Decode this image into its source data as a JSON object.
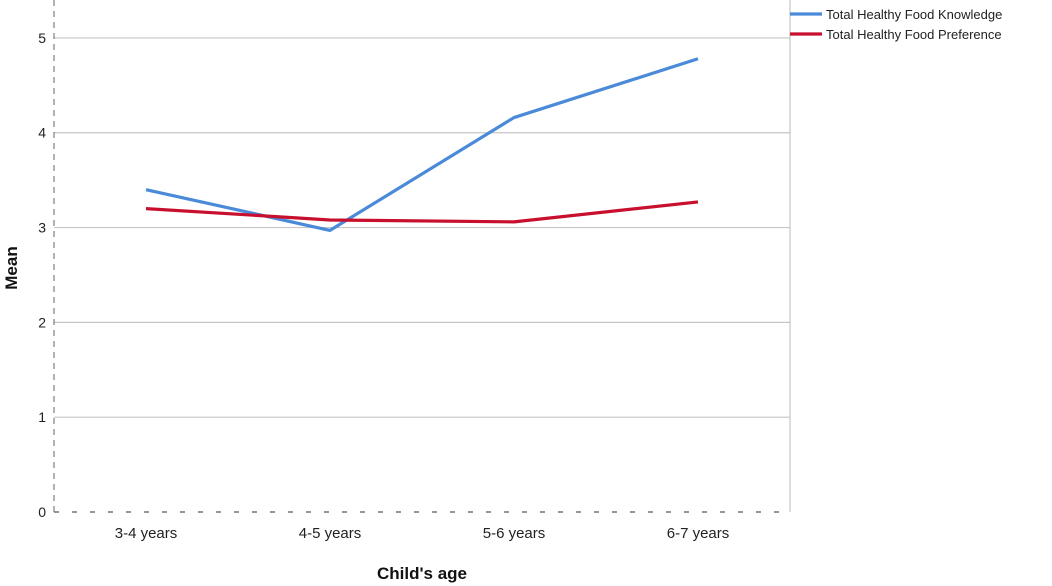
{
  "chart_data": {
    "type": "line",
    "xlabel": "Child's age",
    "ylabel": "Mean",
    "categories": [
      "3-4 years",
      "4-5 years",
      "5-6 years",
      "6-7 years"
    ],
    "ylim": [
      0,
      5.4
    ],
    "yticks": [
      0,
      1,
      2,
      3,
      4,
      5
    ],
    "grid": true,
    "legend_position": "top-right",
    "series": [
      {
        "name": "Total Healthy Food Knowledge",
        "color": "#4a8ad8",
        "values": [
          3.4,
          2.97,
          4.16,
          4.78
        ]
      },
      {
        "name": "Total Healthy Food Preference",
        "color": "#c8102e",
        "values": [
          3.2,
          3.08,
          3.06,
          3.27
        ]
      }
    ]
  }
}
